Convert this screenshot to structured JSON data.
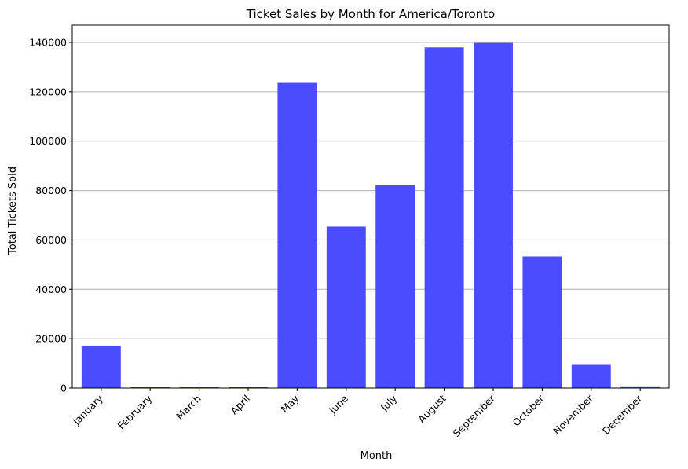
{
  "chart_data": {
    "type": "bar",
    "title": "Ticket Sales by Month for America/Toronto",
    "xlabel": "Month",
    "ylabel": "Total Tickets Sold",
    "categories": [
      "January",
      "February",
      "March",
      "April",
      "May",
      "June",
      "July",
      "August",
      "September",
      "October",
      "November",
      "December"
    ],
    "values": [
      17200,
      350,
      350,
      350,
      123600,
      65400,
      82300,
      138000,
      139800,
      53300,
      9700,
      700
    ],
    "ylim": [
      0,
      147000
    ],
    "yticks": [
      0,
      20000,
      40000,
      60000,
      80000,
      100000,
      120000,
      140000
    ],
    "grid": "y-axis horizontal lines",
    "bar_color": "#4b4bff",
    "grid_color": "#b0b0b0"
  }
}
